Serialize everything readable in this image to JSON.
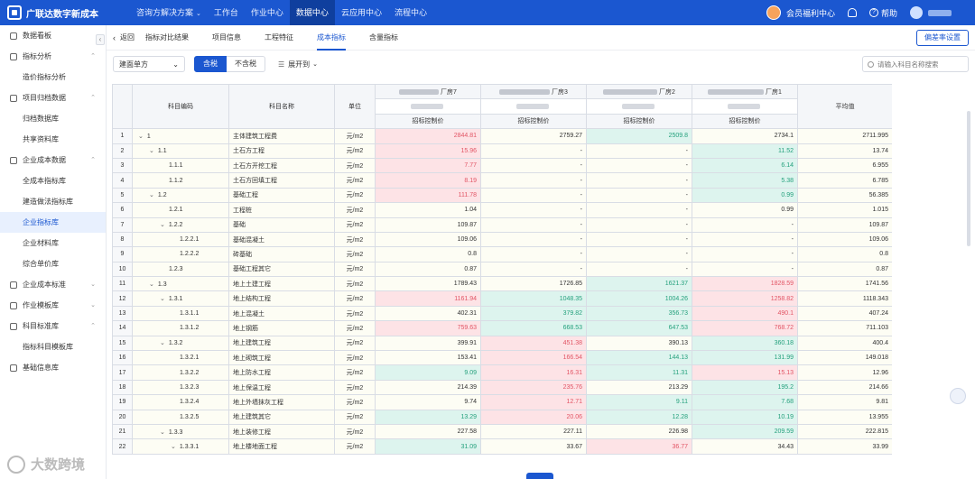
{
  "app": {
    "title": "广联达数字新成本"
  },
  "topnav": [
    {
      "label": "咨询方解决方案",
      "caret": true
    },
    {
      "label": "工作台"
    },
    {
      "label": "作业中心"
    },
    {
      "label": "数据中心",
      "active": true
    },
    {
      "label": "云应用中心"
    },
    {
      "label": "流程中心"
    }
  ],
  "topright": {
    "welfare": "会员福利中心",
    "help": "帮助"
  },
  "sidebar": [
    {
      "type": "group",
      "label": "数据看板",
      "icon": "dashboard-icon"
    },
    {
      "type": "group",
      "label": "指标分析",
      "icon": "chart-icon",
      "arrow": "^"
    },
    {
      "type": "item",
      "label": "造价指标分析"
    },
    {
      "type": "group",
      "label": "项目归档数据",
      "icon": "archive-icon",
      "arrow": "^"
    },
    {
      "type": "item",
      "label": "归档数据库"
    },
    {
      "type": "item",
      "label": "共享资料库"
    },
    {
      "type": "group",
      "label": "企业成本数据",
      "icon": "cost-icon",
      "arrow": "^"
    },
    {
      "type": "item",
      "label": "全成本指标库"
    },
    {
      "type": "item",
      "label": "建造做法指标库"
    },
    {
      "type": "item",
      "label": "企业指标库",
      "active": true
    },
    {
      "type": "item",
      "label": "企业材料库"
    },
    {
      "type": "item",
      "label": "综合单价库"
    },
    {
      "type": "group",
      "label": "企业成本标准",
      "icon": "standard-icon",
      "arrow": "v"
    },
    {
      "type": "group",
      "label": "作业模板库",
      "icon": "template-icon",
      "arrow": "v"
    },
    {
      "type": "group",
      "label": "科目标准库",
      "icon": "subject-icon",
      "arrow": "^"
    },
    {
      "type": "item",
      "label": "指标科目模板库"
    },
    {
      "type": "group",
      "label": "基础信息库",
      "icon": "info-icon"
    }
  ],
  "tabbar": {
    "back": "返回",
    "crumb": "指标对比结果",
    "tabs": [
      {
        "label": "项目信息"
      },
      {
        "label": "工程特征"
      },
      {
        "label": "成本指标",
        "active": true
      },
      {
        "label": "含量指标"
      }
    ],
    "rate_button": "偏差率设置"
  },
  "filter": {
    "select_value": "建面单方",
    "tax_on": "含税",
    "tax_off": "不含税",
    "expand": "展开到",
    "search_placeholder": "请输入科目名称搜索"
  },
  "table": {
    "headers": {
      "idx": "",
      "code": "科目编码",
      "name": "科目名称",
      "unit": "单位",
      "avg": "平均值"
    },
    "projects": [
      {
        "name": "厂房7",
        "sub": "招标控制价"
      },
      {
        "name": "厂房3",
        "sub": "招标控制价"
      },
      {
        "name": "厂房2",
        "sub": "招标控制价"
      },
      {
        "name": "厂房1",
        "sub": "招标控制价"
      }
    ],
    "rows": [
      {
        "i": "1",
        "code": "1",
        "lvl": 0,
        "exp": true,
        "name": "主体建筑工程费",
        "unit": "元/m2",
        "v": [
          "2844.81",
          "2759.27",
          "2509.8",
          "2734.1"
        ],
        "c": [
          "red",
          "",
          "green",
          ""
        ],
        "avg": "2711.995"
      },
      {
        "i": "2",
        "code": "1.1",
        "lvl": 1,
        "exp": true,
        "name": "土石方工程",
        "unit": "元/m2",
        "v": [
          "15.96",
          "-",
          "-",
          "11.52"
        ],
        "c": [
          "red",
          "",
          "",
          "green"
        ],
        "avg": "13.74"
      },
      {
        "i": "3",
        "code": "1.1.1",
        "lvl": 2,
        "name": "土石方开挖工程",
        "unit": "元/m2",
        "v": [
          "7.77",
          "-",
          "-",
          "6.14"
        ],
        "c": [
          "red",
          "",
          "",
          "green"
        ],
        "avg": "6.955"
      },
      {
        "i": "4",
        "code": "1.1.2",
        "lvl": 2,
        "name": "土石方回填工程",
        "unit": "元/m2",
        "v": [
          "8.19",
          "-",
          "-",
          "5.38"
        ],
        "c": [
          "red",
          "",
          "",
          "green"
        ],
        "avg": "6.785"
      },
      {
        "i": "5",
        "code": "1.2",
        "lvl": 1,
        "exp": true,
        "name": "基础工程",
        "unit": "元/m2",
        "v": [
          "111.78",
          "-",
          "-",
          "0.99"
        ],
        "c": [
          "red",
          "",
          "",
          "green"
        ],
        "avg": "56.385"
      },
      {
        "i": "6",
        "code": "1.2.1",
        "lvl": 2,
        "name": "工程桩",
        "unit": "元/m2",
        "v": [
          "1.04",
          "-",
          "-",
          "0.99"
        ],
        "c": [
          "",
          "",
          "",
          ""
        ],
        "avg": "1.015"
      },
      {
        "i": "7",
        "code": "1.2.2",
        "lvl": 2,
        "exp": true,
        "name": "基础",
        "unit": "元/m2",
        "v": [
          "109.87",
          "-",
          "-",
          "-"
        ],
        "c": [
          "",
          "",
          "",
          ""
        ],
        "avg": "109.87"
      },
      {
        "i": "8",
        "code": "1.2.2.1",
        "lvl": 3,
        "name": "基础混凝土",
        "unit": "元/m2",
        "v": [
          "109.06",
          "-",
          "-",
          "-"
        ],
        "c": [
          "",
          "",
          "",
          ""
        ],
        "avg": "109.06"
      },
      {
        "i": "9",
        "code": "1.2.2.2",
        "lvl": 3,
        "name": "砖基础",
        "unit": "元/m2",
        "v": [
          "0.8",
          "-",
          "-",
          "-"
        ],
        "c": [
          "",
          "",
          "",
          ""
        ],
        "avg": "0.8"
      },
      {
        "i": "10",
        "code": "1.2.3",
        "lvl": 2,
        "name": "基础工程其它",
        "unit": "元/m2",
        "v": [
          "0.87",
          "-",
          "-",
          "-"
        ],
        "c": [
          "",
          "",
          "",
          ""
        ],
        "avg": "0.87"
      },
      {
        "i": "11",
        "code": "1.3",
        "lvl": 1,
        "exp": true,
        "name": "地上土建工程",
        "unit": "元/m2",
        "v": [
          "1789.43",
          "1726.85",
          "1621.37",
          "1828.59"
        ],
        "c": [
          "",
          "",
          "green",
          "red"
        ],
        "avg": "1741.56"
      },
      {
        "i": "12",
        "code": "1.3.1",
        "lvl": 2,
        "exp": true,
        "name": "地上结构工程",
        "unit": "元/m2",
        "v": [
          "1161.94",
          "1048.35",
          "1004.26",
          "1258.82"
        ],
        "c": [
          "red",
          "green",
          "green",
          "red"
        ],
        "avg": "1118.343"
      },
      {
        "i": "13",
        "code": "1.3.1.1",
        "lvl": 3,
        "name": "地上混凝土",
        "unit": "元/m2",
        "v": [
          "402.31",
          "379.82",
          "356.73",
          "490.1"
        ],
        "c": [
          "",
          "green",
          "green",
          "red"
        ],
        "avg": "407.24"
      },
      {
        "i": "14",
        "code": "1.3.1.2",
        "lvl": 3,
        "name": "地上钢筋",
        "unit": "元/m2",
        "v": [
          "759.63",
          "668.53",
          "647.53",
          "768.72"
        ],
        "c": [
          "red",
          "green",
          "green",
          "red"
        ],
        "avg": "711.103"
      },
      {
        "i": "15",
        "code": "1.3.2",
        "lvl": 2,
        "exp": true,
        "name": "地上建筑工程",
        "unit": "元/m2",
        "v": [
          "399.91",
          "451.38",
          "390.13",
          "360.18"
        ],
        "c": [
          "",
          "red",
          "",
          "green"
        ],
        "avg": "400.4"
      },
      {
        "i": "16",
        "code": "1.3.2.1",
        "lvl": 3,
        "name": "地上砌筑工程",
        "unit": "元/m2",
        "v": [
          "153.41",
          "166.54",
          "144.13",
          "131.99"
        ],
        "c": [
          "",
          "red",
          "green",
          "green"
        ],
        "avg": "149.018"
      },
      {
        "i": "17",
        "code": "1.3.2.2",
        "lvl": 3,
        "name": "地上防水工程",
        "unit": "元/m2",
        "v": [
          "9.09",
          "16.31",
          "11.31",
          "15.13"
        ],
        "c": [
          "green",
          "red",
          "green",
          "red"
        ],
        "avg": "12.96"
      },
      {
        "i": "18",
        "code": "1.3.2.3",
        "lvl": 3,
        "name": "地上保温工程",
        "unit": "元/m2",
        "v": [
          "214.39",
          "235.76",
          "213.29",
          "195.2"
        ],
        "c": [
          "",
          "red",
          "",
          "green"
        ],
        "avg": "214.66"
      },
      {
        "i": "19",
        "code": "1.3.2.4",
        "lvl": 3,
        "name": "地上外墙抹灰工程",
        "unit": "元/m2",
        "v": [
          "9.74",
          "12.71",
          "9.11",
          "7.68"
        ],
        "c": [
          "",
          "red",
          "green",
          "green"
        ],
        "avg": "9.81"
      },
      {
        "i": "20",
        "code": "1.3.2.5",
        "lvl": 3,
        "name": "地上建筑其它",
        "unit": "元/m2",
        "v": [
          "13.29",
          "20.06",
          "12.28",
          "10.19"
        ],
        "c": [
          "green",
          "red",
          "green",
          "green"
        ],
        "avg": "13.955"
      },
      {
        "i": "21",
        "code": "1.3.3",
        "lvl": 2,
        "exp": true,
        "name": "地上装修工程",
        "unit": "元/m2",
        "v": [
          "227.58",
          "227.11",
          "226.98",
          "209.59"
        ],
        "c": [
          "",
          "",
          "",
          "green"
        ],
        "avg": "222.815"
      },
      {
        "i": "22",
        "code": "1.3.3.1",
        "lvl": 3,
        "exp": true,
        "name": "地上楼地面工程",
        "unit": "元/m2",
        "v": [
          "31.09",
          "33.67",
          "36.77",
          "34.43"
        ],
        "c": [
          "green",
          "",
          "red",
          ""
        ],
        "avg": "33.99"
      }
    ]
  },
  "colors": {
    "brand": "#1b57d0",
    "high": "#e25565",
    "low": "#25a17d"
  },
  "footer": {
    "brand": "大数跨境"
  }
}
